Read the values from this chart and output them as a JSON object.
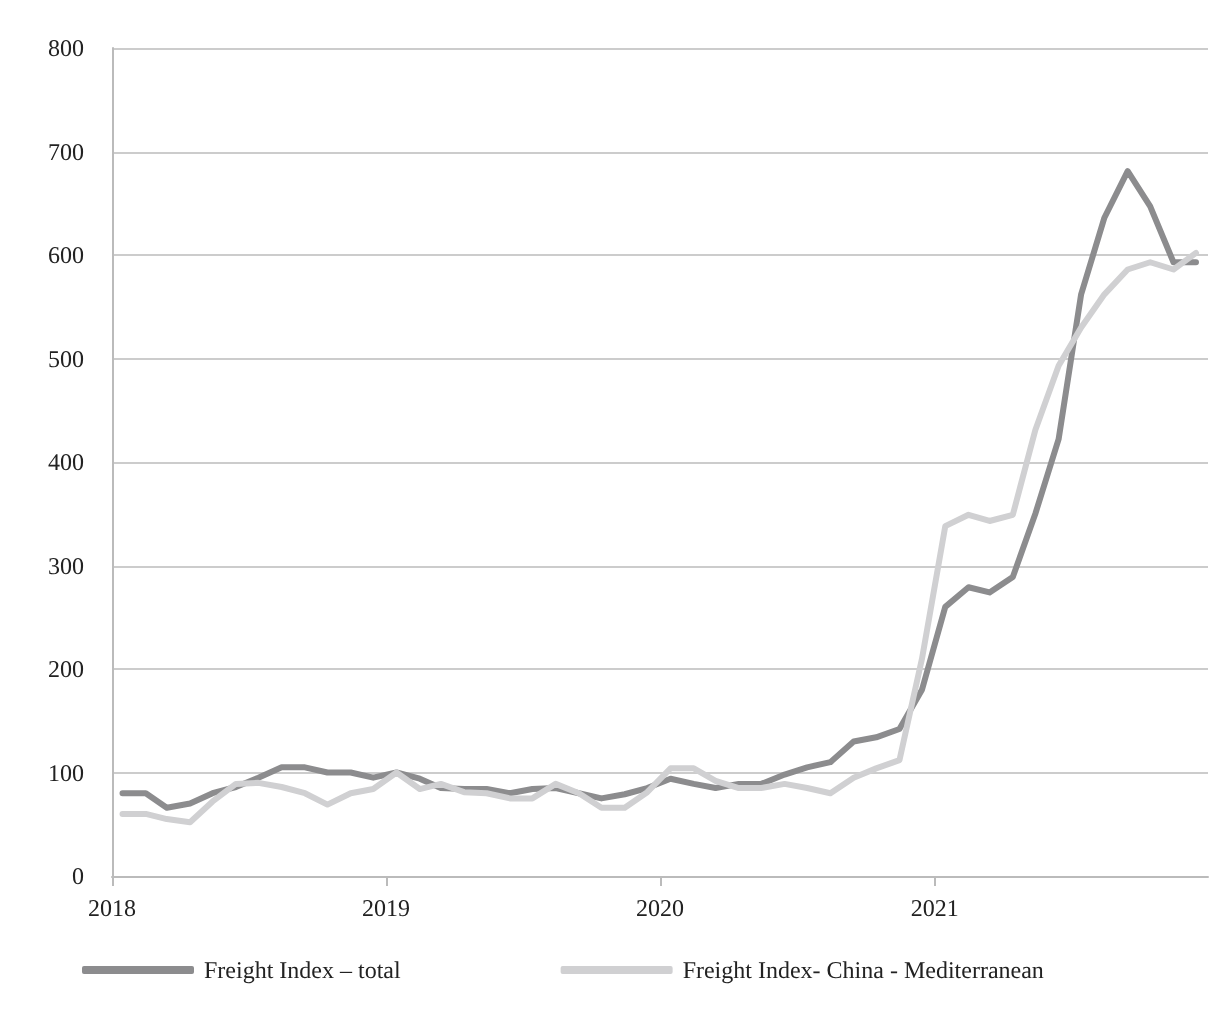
{
  "chart_data": {
    "type": "line",
    "x": [
      "2018-01-15",
      "2018-02-15",
      "2018-03-15",
      "2018-04-15",
      "2018-05-15",
      "2018-06-15",
      "2018-07-15",
      "2018-08-15",
      "2018-09-15",
      "2018-10-15",
      "2018-11-15",
      "2018-12-15",
      "2019-01-15",
      "2019-02-15",
      "2019-03-15",
      "2019-04-15",
      "2019-05-15",
      "2019-06-15",
      "2019-07-15",
      "2019-08-15",
      "2019-09-15",
      "2019-10-15",
      "2019-11-15",
      "2019-12-15",
      "2020-01-15",
      "2020-02-15",
      "2020-03-15",
      "2020-04-15",
      "2020-05-15",
      "2020-06-15",
      "2020-07-15",
      "2020-08-15",
      "2020-09-15",
      "2020-10-15",
      "2020-11-15",
      "2020-12-15",
      "2021-01-15",
      "2021-02-15",
      "2021-03-15",
      "2021-04-15",
      "2021-05-15",
      "2021-06-15",
      "2021-07-15",
      "2021-08-15",
      "2021-09-15",
      "2021-10-15",
      "2021-11-15",
      "2021-12-15"
    ],
    "series": [
      {
        "name": "Freight Index – total",
        "color": "#8c8c8e",
        "values": [
          80,
          80,
          66,
          70,
          80,
          86,
          95,
          105,
          105,
          100,
          100,
          95,
          100,
          94,
          85,
          84,
          84,
          80,
          84,
          85,
          80,
          75,
          79,
          85,
          94,
          89,
          85,
          89,
          89,
          98,
          105,
          110,
          130,
          134,
          142,
          180,
          260,
          279,
          274,
          289,
          350,
          422,
          562,
          636,
          681,
          647,
          593,
          593
        ]
      },
      {
        "name": "Freight Index- China - Mediterranean",
        "color": "#d0d0d2",
        "values": [
          60,
          60,
          55,
          52,
          72,
          89,
          90,
          86,
          80,
          69,
          80,
          84,
          100,
          84,
          89,
          81,
          80,
          75,
          75,
          89,
          80,
          66,
          66,
          81,
          104,
          104,
          92,
          85,
          85,
          89,
          85,
          80,
          95,
          104,
          112,
          210,
          338,
          349,
          343,
          349,
          431,
          493,
          530,
          562,
          586,
          593,
          586,
          602
        ]
      }
    ],
    "xlim": [
      "2018-01-01",
      "2021-12-31"
    ],
    "xticks": [
      {
        "value": "2018-01-01",
        "label": "2018"
      },
      {
        "value": "2019-01-01",
        "label": "2019"
      },
      {
        "value": "2020-01-01",
        "label": "2020"
      },
      {
        "value": "2021-01-01",
        "label": "2021"
      }
    ],
    "ylim": [
      0,
      800
    ],
    "yticks": [
      0,
      100,
      200,
      300,
      400,
      500,
      600,
      700,
      800
    ],
    "grid": "y",
    "legend": "bottom",
    "marker": "none",
    "line_style": "solid"
  }
}
